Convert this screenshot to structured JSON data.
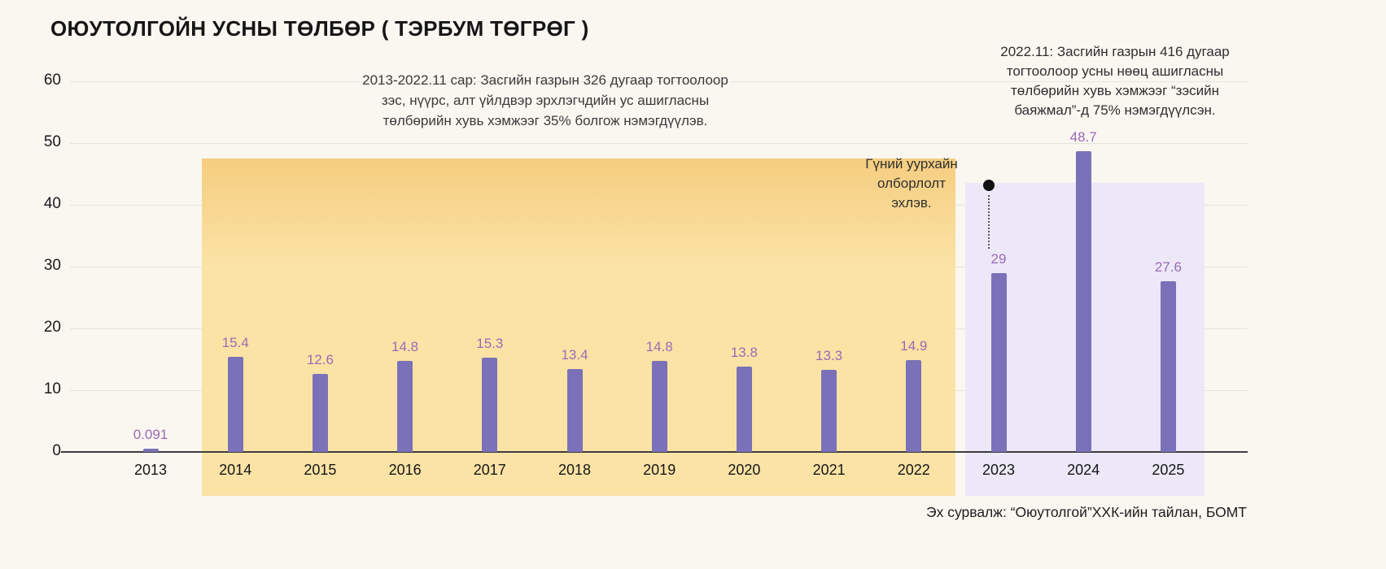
{
  "title": "ОЮУТОЛГОЙН УСНЫ ТӨЛБӨР ( ТЭРБУМ ТӨГРӨГ )",
  "annotations": {
    "center_lines": [
      "2013-2022.11 сар:  Засгийн газрын 326 дугаар тогтоолоор",
      "зэс, нүүрс, алт үйлдвэр эрхлэгчдийн ус ашигласны",
      "төлбөрийн хувь хэмжээг 35% болгож нэмэгдүүлэв."
    ],
    "right_lines": [
      "2022.11: Засгийн газрын 416 дугаар",
      "тогтоолоор усны нөөц ашигласны",
      "төлбөрийн хувь хэмжээг “зэсийн",
      "баяжмал”-д 75% нэмэгдүүлсэн."
    ],
    "mine_lines": [
      "Гүний уурхайн",
      "олборлолт",
      "эхлэв."
    ],
    "source": "Эх сурвалж: “Оюутолгой”ХХК-ийн тайлан, БОМТ"
  },
  "chart_data": {
    "type": "bar",
    "title": "ОЮУТОЛГОЙН УСНЫ ТӨЛБӨР ( ТЭРБУМ ТӨГРӨГ )",
    "categories": [
      "2013",
      "2014",
      "2015",
      "2016",
      "2017",
      "2018",
      "2019",
      "2020",
      "2021",
      "2022",
      "2023",
      "2024",
      "2025"
    ],
    "values": [
      0.091,
      15.4,
      12.6,
      14.8,
      15.3,
      13.4,
      14.8,
      13.8,
      13.3,
      14.9,
      29,
      48.7,
      27.6
    ],
    "value_labels": [
      "0.091",
      "15.4",
      "12.6",
      "14.8",
      "15.3",
      "13.4",
      "14.8",
      "13.8",
      "13.3",
      "14.9",
      "29",
      "48.7",
      "27.6"
    ],
    "ylim": [
      0,
      60
    ],
    "yticks": [
      0,
      10,
      20,
      30,
      40,
      50,
      60
    ],
    "grid": true,
    "legend": "none",
    "bar_color": "#7a71b8",
    "label_color": "#9b6bb4",
    "background_color": "#faf7f1",
    "regions": [
      {
        "name": "policy-326-highlight",
        "from": "2014",
        "to": "2022",
        "color": "#fbe3a6",
        "gradient_top": "#f5cd7f"
      },
      {
        "name": "policy-416-highlight",
        "from": "2023",
        "to": "2025",
        "color": "#ece8f8"
      }
    ]
  }
}
